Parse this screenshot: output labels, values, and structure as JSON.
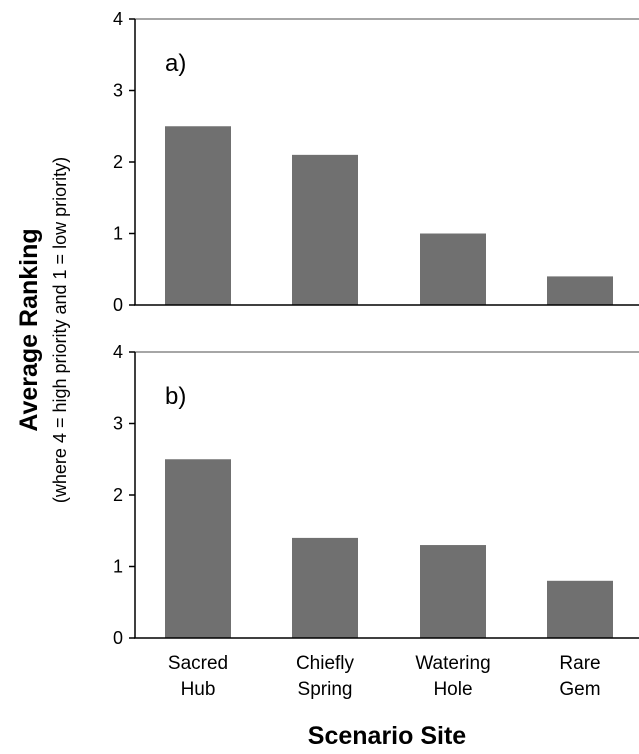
{
  "colors": {
    "bar": "#707070",
    "axis": "#000000",
    "top_line": "#a6a6a6"
  },
  "ylabel": {
    "main": "Average Ranking",
    "sub": "(where 4 = high priority and 1 = low priority)"
  },
  "xlabel": "Scenario Site",
  "categories": [
    {
      "line1": "Sacred",
      "line2": "Hub"
    },
    {
      "line1": "Chiefly",
      "line2": "Spring"
    },
    {
      "line1": "Watering",
      "line2": "Hole"
    },
    {
      "line1": "Rare",
      "line2": "Gem"
    }
  ],
  "chart_data": [
    {
      "type": "bar",
      "panel_label": "a)",
      "categories": [
        "Sacred Hub",
        "Chiefly Spring",
        "Watering Hole",
        "Rare Gem"
      ],
      "values": [
        2.5,
        2.1,
        1.0,
        0.4
      ],
      "ylim": [
        0,
        4
      ],
      "yticks": [
        "0",
        "1",
        "2",
        "3",
        "4"
      ]
    },
    {
      "type": "bar",
      "panel_label": "b)",
      "categories": [
        "Sacred Hub",
        "Chiefly Spring",
        "Watering Hole",
        "Rare Gem"
      ],
      "values": [
        2.5,
        1.4,
        1.3,
        0.8
      ],
      "ylim": [
        0,
        4
      ],
      "yticks": [
        "0",
        "1",
        "2",
        "3",
        "4"
      ]
    }
  ]
}
